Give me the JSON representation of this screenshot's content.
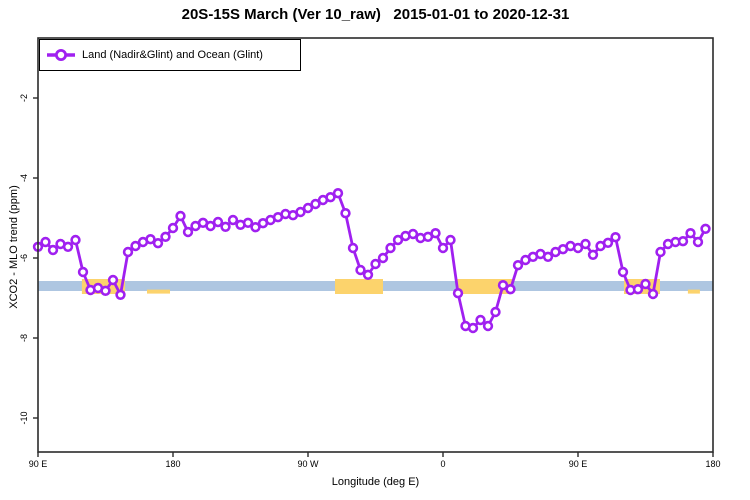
{
  "title": "20S-15S March (Ver 10_raw)   2015-01-01 to 2020-12-31",
  "legend": {
    "label": "Land (Nadir&Glint) and Ocean (Glint)"
  },
  "axes": {
    "xlabel": "Longitude (deg E)",
    "ylabel": "XCO2 - MLO trend (ppm)",
    "x_ticks": [
      {
        "label": "90 E",
        "lon": 90
      },
      {
        "label": "180",
        "lon": 180
      },
      {
        "label": "90 W",
        "lon": 270
      },
      {
        "label": "0",
        "lon": 360
      },
      {
        "label": "90 E",
        "lon": 450
      },
      {
        "label": "180",
        "lon": 540
      }
    ],
    "y_ticks": [
      {
        "label": "-2",
        "value": -2
      },
      {
        "label": "-4",
        "value": -4
      },
      {
        "label": "-6",
        "value": -6
      },
      {
        "label": "-8",
        "value": -8
      },
      {
        "label": "-10",
        "value": -10
      }
    ]
  },
  "colors": {
    "series": "#a020f0",
    "marker_fill": "#ffffff",
    "blue_band": "#aec6e1",
    "orange_band": "#fcd36c",
    "frame": "#2b2b2b",
    "text": "#000000"
  },
  "chart_data": {
    "type": "line",
    "title": "20S-15S March (Ver 10_raw)   2015-01-01 to 2020-12-31",
    "xlabel": "Longitude (deg E)",
    "ylabel": "XCO2 - MLO trend (ppm)",
    "x_axis_note": "longitude plotted continuously eastward from 90E; 270=90W, 360=0, 450=90E, 540=180",
    "xlim": [
      90,
      540
    ],
    "ylim": [
      -10.85,
      -0.5
    ],
    "grid": false,
    "legend_position": "top-left",
    "series": [
      {
        "name": "Land (Nadir&Glint) and Ocean (Glint)",
        "color": "#a020f0",
        "marker": "open-circle",
        "x": [
          90,
          95,
          100,
          105,
          110,
          115,
          120,
          125,
          130,
          135,
          140,
          145,
          150,
          155,
          160,
          165,
          170,
          175,
          180,
          185,
          190,
          195,
          200,
          205,
          210,
          215,
          220,
          225,
          230,
          235,
          240,
          245,
          250,
          255,
          260,
          265,
          270,
          275,
          280,
          285,
          290,
          295,
          300,
          305,
          310,
          315,
          320,
          325,
          330,
          335,
          340,
          345,
          350,
          355,
          360,
          365,
          370,
          375,
          380,
          385,
          390,
          395,
          400,
          405,
          410,
          415,
          420,
          425,
          430,
          435,
          440,
          445,
          450,
          455,
          460,
          465,
          470,
          475,
          480,
          485,
          490,
          495,
          500,
          505,
          510,
          515,
          520,
          525,
          530,
          535
        ],
        "y": [
          -5.72,
          -5.6,
          -5.8,
          -5.65,
          -5.72,
          -5.55,
          -6.35,
          -6.8,
          -6.75,
          -6.82,
          -6.55,
          -6.92,
          -5.85,
          -5.7,
          -5.6,
          -5.53,
          -5.63,
          -5.47,
          -5.25,
          -4.95,
          -5.35,
          -5.2,
          -5.12,
          -5.2,
          -5.1,
          -5.22,
          -5.05,
          -5.17,
          -5.12,
          -5.23,
          -5.13,
          -5.05,
          -4.98,
          -4.9,
          -4.93,
          -4.85,
          -4.75,
          -4.65,
          -4.55,
          -4.48,
          -4.38,
          -4.88,
          -5.75,
          -6.3,
          -6.42,
          -6.15,
          -6.0,
          -5.75,
          -5.55,
          -5.45,
          -5.4,
          -5.5,
          -5.47,
          -5.38,
          -5.75,
          -5.55,
          -6.88,
          -7.7,
          -7.75,
          -7.55,
          -7.7,
          -7.35,
          -6.68,
          -6.78,
          -6.18,
          -6.05,
          -5.97,
          -5.9,
          -5.97,
          -5.85,
          -5.78,
          -5.7,
          -5.75,
          -5.65,
          -5.92,
          -5.7,
          -5.62,
          -5.48,
          -6.35,
          -6.8,
          -6.78,
          -6.65,
          -6.9,
          -5.85,
          -5.65,
          -5.6,
          -5.58,
          -5.38,
          -5.6,
          -5.27
        ]
      }
    ],
    "reference_bands": [
      {
        "name": "blue-band",
        "color": "#aec6e1",
        "value_top": -6.575,
        "value_bottom": -6.825,
        "lon_segments": [
          [
            90,
            288
          ],
          [
            320,
            369.3
          ],
          [
            406,
            480.7
          ],
          [
            504.7,
            540
          ]
        ]
      },
      {
        "name": "orange-band",
        "color": "#fcd36c",
        "value_top": -6.525,
        "value_bottom": -6.9,
        "lon_segments": [
          [
            119.3,
            148
          ],
          [
            288,
            320
          ],
          [
            369.3,
            406
          ],
          [
            480.7,
            504.7
          ]
        ]
      },
      {
        "name": "orange-band-sliver",
        "color": "#fcd36c",
        "value_top": -6.79,
        "value_bottom": -6.89,
        "lon_segments": [
          [
            162.7,
            178
          ],
          [
            523.3,
            531.3
          ]
        ]
      }
    ]
  }
}
